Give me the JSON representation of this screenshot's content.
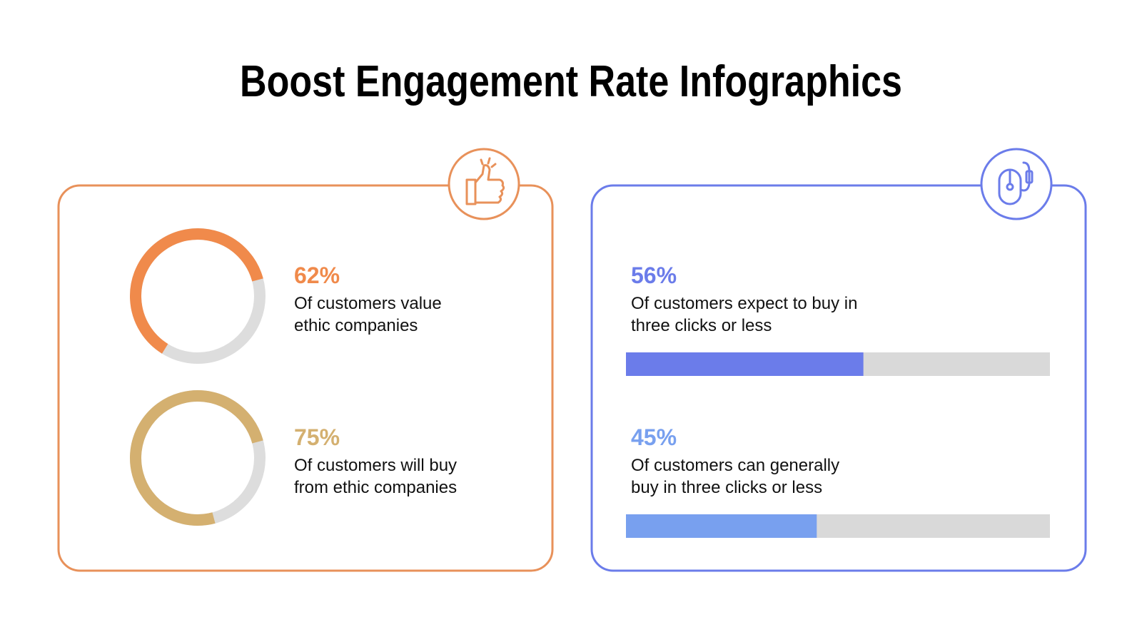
{
  "title": "Boost Engagement Rate Infographics",
  "chart_data": [
    {
      "type": "donut",
      "categories": [
        "Of customers value\nethic companies",
        "Of customers will buy\nfrom ethic companies"
      ],
      "values": [
        62,
        75
      ],
      "value_labels": [
        "62%",
        "75%"
      ],
      "colors": [
        "#f08a4b",
        "#d4b070"
      ],
      "track_color": "#dddddd",
      "frame_color": "#e8915a"
    },
    {
      "type": "progress",
      "categories": [
        "Of customers expect to buy in\nthree clicks or less",
        "Of customers can generally\nbuy in three clicks or less"
      ],
      "values": [
        56,
        45
      ],
      "value_labels": [
        "56%",
        "45%"
      ],
      "colors": [
        "#6b7cea",
        "#78a0ef"
      ],
      "track_color": "#d9d9d9",
      "frame_color": "#6b7cea"
    }
  ]
}
